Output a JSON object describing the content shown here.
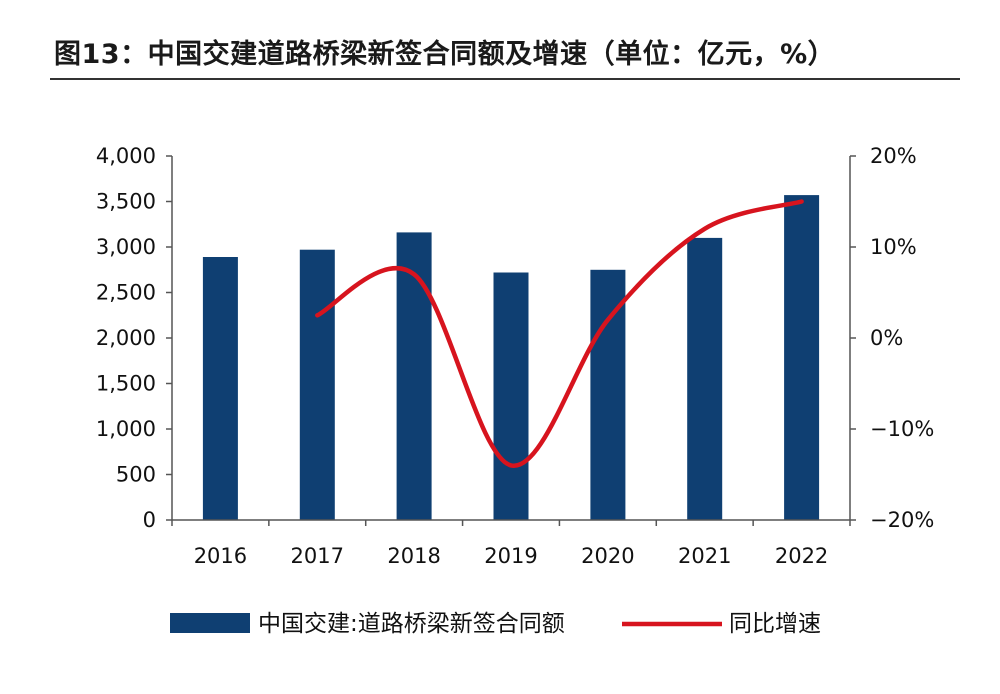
{
  "figure_title": "图13：中国交建道路桥梁新签合同额及增速（单位：亿元，%）",
  "colors": {
    "bar": "#0f3f72",
    "line": "#d7141e",
    "axis": "#555555"
  },
  "chart_data": {
    "type": "bar",
    "title": "",
    "categories": [
      "2016",
      "2017",
      "2018",
      "2019",
      "2020",
      "2021",
      "2022"
    ],
    "series": [
      {
        "name": "中国交建:道路桥梁新签合同额",
        "type": "bar",
        "axis": "left",
        "values": [
          2890,
          2970,
          3160,
          2720,
          2750,
          3100,
          3570
        ]
      },
      {
        "name": "同比增速",
        "type": "line",
        "axis": "right",
        "smooth": true,
        "values": [
          null,
          2.5,
          7.0,
          -14.0,
          2.0,
          12.0,
          15.0
        ]
      }
    ],
    "y_left": {
      "ylim": [
        0,
        4000
      ],
      "ticks": [
        0,
        500,
        1000,
        1500,
        2000,
        2500,
        3000,
        3500,
        4000
      ],
      "tick_labels": [
        "0",
        "500",
        "1,000",
        "1,500",
        "2,000",
        "2,500",
        "3,000",
        "3,500",
        "4,000"
      ]
    },
    "y_right": {
      "ylim": [
        -20,
        20
      ],
      "ticks": [
        -20,
        -10,
        0,
        10,
        20
      ],
      "tick_labels": [
        "−20%",
        "−10%",
        "0%",
        "10%",
        "20%"
      ]
    },
    "grid": false,
    "legend_position": "bottom"
  }
}
